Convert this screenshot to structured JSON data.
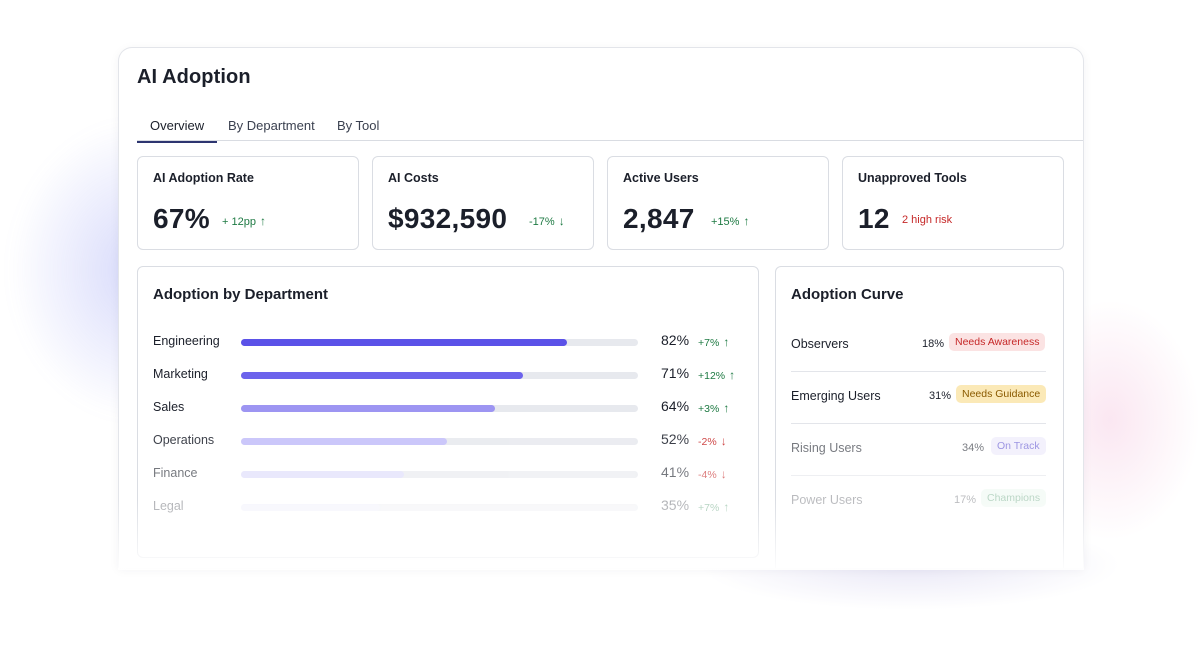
{
  "page": {
    "title": "AI Adoption"
  },
  "tabs": [
    {
      "label": "Overview",
      "active": true
    },
    {
      "label": "By Department",
      "active": false
    },
    {
      "label": "By Tool",
      "active": false
    }
  ],
  "metrics": [
    {
      "title": "AI Adoption Rate",
      "value": "67%",
      "delta": "+ 12pp",
      "direction": "up"
    },
    {
      "title": "AI Costs",
      "value": "$932,590",
      "delta": "-17%",
      "direction": "down"
    },
    {
      "title": "Active Users",
      "value": "2,847",
      "delta": "+15%",
      "direction": "up"
    },
    {
      "title": "Unapproved Tools",
      "value": "12",
      "delta": "2 high risk",
      "direction": "risk"
    }
  ],
  "adoption_by_department": {
    "title": "Adoption by Department",
    "rows": [
      {
        "label": "Engineering",
        "pct": "82%",
        "value": 82,
        "delta": "+7%",
        "direction": "up",
        "bar_color": "#5b52e8"
      },
      {
        "label": "Marketing",
        "pct": "71%",
        "value": 71,
        "delta": "+12%",
        "direction": "up",
        "bar_color": "#6c63ec"
      },
      {
        "label": "Sales",
        "pct": "64%",
        "value": 64,
        "delta": "+3%",
        "direction": "up",
        "bar_color": "#9d95f2"
      },
      {
        "label": "Operations",
        "pct": "52%",
        "value": 52,
        "delta": "-2%",
        "direction": "down",
        "bar_color": "#c3befa"
      },
      {
        "label": "Finance",
        "pct": "41%",
        "value": 41,
        "delta": "-4%",
        "direction": "down",
        "bar_color": "#dcd9fb"
      },
      {
        "label": "Legal",
        "pct": "35%",
        "value": 35,
        "delta": "+7%",
        "direction": "up",
        "bar_color": "#ebe9fc"
      }
    ]
  },
  "adoption_curve": {
    "title": "Adoption Curve",
    "rows": [
      {
        "label": "Observers",
        "pct": "18%",
        "badge": "Needs Awareness",
        "tone": "red"
      },
      {
        "label": "Emerging Users",
        "pct": "31%",
        "badge": "Needs Guidance",
        "tone": "amber"
      },
      {
        "label": "Rising Users",
        "pct": "34%",
        "badge": "On Track",
        "tone": "purple"
      },
      {
        "label": "Power Users",
        "pct": "17%",
        "badge": "Champions",
        "tone": "green"
      }
    ]
  },
  "icons": {
    "up": "arrow-up-icon",
    "down": "arrow-down-icon"
  }
}
